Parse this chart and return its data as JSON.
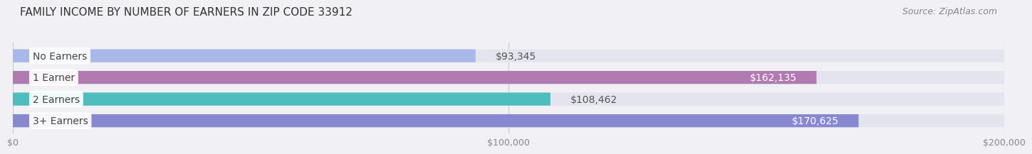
{
  "title": "FAMILY INCOME BY NUMBER OF EARNERS IN ZIP CODE 33912",
  "source": "Source: ZipAtlas.com",
  "categories": [
    "No Earners",
    "1 Earner",
    "2 Earners",
    "3+ Earners"
  ],
  "values": [
    93345,
    162135,
    108462,
    170625
  ],
  "bar_colors": [
    "#a8b8e8",
    "#b07bb0",
    "#4dbdbd",
    "#8888d0"
  ],
  "label_colors": [
    "#555555",
    "#ffffff",
    "#555555",
    "#ffffff"
  ],
  "background_color": "#f0f0f5",
  "bar_bg_color": "#e4e4ee",
  "xlim": [
    0,
    200000
  ],
  "xtick_values": [
    0,
    100000,
    200000
  ],
  "xtick_labels": [
    "$0",
    "$100,000",
    "$200,000"
  ],
  "value_labels": [
    "$93,345",
    "$162,135",
    "$108,462",
    "$170,625"
  ],
  "value_inside": [
    false,
    true,
    false,
    true
  ],
  "title_fontsize": 11,
  "source_fontsize": 9,
  "label_fontsize": 10,
  "value_fontsize": 10,
  "tick_fontsize": 9
}
